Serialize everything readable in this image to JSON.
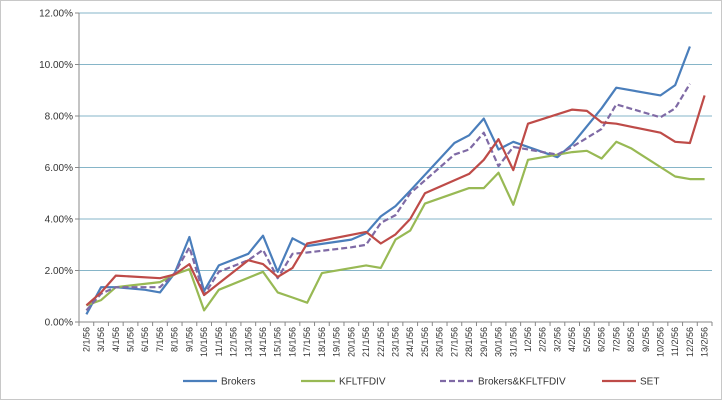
{
  "chart_data": {
    "type": "line",
    "title": "",
    "xlabel": "",
    "ylabel": "",
    "ylim": [
      0,
      12
    ],
    "y_ticks": [
      "0.00%",
      "2.00%",
      "4.00%",
      "6.00%",
      "8.00%",
      "10.00%",
      "12.00%"
    ],
    "grid": "horizontal",
    "legend_position": "bottom",
    "x": [
      "2/1/56",
      "3/1/56",
      "4/1/56",
      "5/1/56",
      "6/1/56",
      "7/1/56",
      "8/1/56",
      "9/1/56",
      "10/1/56",
      "11/1/56",
      "12/1/56",
      "13/1/56",
      "14/1/56",
      "15/1/56",
      "16/1/56",
      "17/1/56",
      "18/1/56",
      "19/1/56",
      "20/1/56",
      "21/1/56",
      "22/1/56",
      "23/1/56",
      "24/1/56",
      "25/1/56",
      "26/1/56",
      "27/1/56",
      "28/1/56",
      "29/1/56",
      "30/1/56",
      "31/1/56",
      "1/2/56",
      "2/2/56",
      "3/2/56",
      "4/2/56",
      "5/2/56",
      "6/2/56",
      "7/2/56",
      "8/2/56",
      "9/2/56",
      "10/2/56",
      "11/2/56",
      "12/2/56",
      "13/2/56"
    ],
    "series": [
      {
        "name": "Brokers",
        "color": "#4a7ebb",
        "dash": "solid",
        "points": [
          [
            0,
            0.3
          ],
          [
            1,
            1.35
          ],
          [
            2,
            1.35
          ],
          [
            4,
            1.25
          ],
          [
            5,
            1.15
          ],
          [
            6,
            1.9
          ],
          [
            7,
            3.3
          ],
          [
            8,
            1.2
          ],
          [
            9,
            2.2
          ],
          [
            11,
            2.65
          ],
          [
            12,
            3.35
          ],
          [
            13,
            1.95
          ],
          [
            14,
            3.25
          ],
          [
            15,
            2.95
          ],
          [
            18,
            3.2
          ],
          [
            19,
            3.45
          ],
          [
            20,
            4.1
          ],
          [
            21,
            4.5
          ],
          [
            22,
            5.1
          ],
          [
            25,
            6.95
          ],
          [
            26,
            7.25
          ],
          [
            27,
            7.9
          ],
          [
            28,
            6.7
          ],
          [
            29,
            7.0
          ],
          [
            32,
            6.4
          ],
          [
            33,
            6.9
          ],
          [
            35,
            8.3
          ],
          [
            36,
            9.1
          ],
          [
            39,
            8.8
          ],
          [
            40,
            9.2
          ],
          [
            41,
            10.7
          ]
        ]
      },
      {
        "name": "KFLTFDIV",
        "color": "#98b954",
        "dash": "solid",
        "points": [
          [
            0,
            0.65
          ],
          [
            1,
            0.85
          ],
          [
            2,
            1.35
          ],
          [
            5,
            1.55
          ],
          [
            6,
            1.85
          ],
          [
            7,
            2.05
          ],
          [
            8,
            0.45
          ],
          [
            9,
            1.25
          ],
          [
            12,
            1.95
          ],
          [
            13,
            1.15
          ],
          [
            14,
            0.95
          ],
          [
            15,
            0.75
          ],
          [
            16,
            1.9
          ],
          [
            19,
            2.2
          ],
          [
            20,
            2.1
          ],
          [
            21,
            3.2
          ],
          [
            22,
            3.55
          ],
          [
            23,
            4.6
          ],
          [
            26,
            5.2
          ],
          [
            27,
            5.2
          ],
          [
            28,
            5.8
          ],
          [
            29,
            4.55
          ],
          [
            30,
            6.3
          ],
          [
            33,
            6.6
          ],
          [
            34,
            6.65
          ],
          [
            35,
            6.35
          ],
          [
            36,
            7.0
          ],
          [
            37,
            6.75
          ],
          [
            40,
            5.65
          ],
          [
            41,
            5.55
          ],
          [
            42,
            5.55
          ]
        ]
      },
      {
        "name": "Brokers&KFLTFDIV",
        "color": "#7f6aa5",
        "dash": "6,3",
        "points": [
          [
            0,
            0.45
          ],
          [
            1,
            1.1
          ],
          [
            2,
            1.35
          ],
          [
            5,
            1.35
          ],
          [
            6,
            1.9
          ],
          [
            7,
            2.9
          ],
          [
            8,
            1.05
          ],
          [
            9,
            1.95
          ],
          [
            11,
            2.4
          ],
          [
            12,
            2.8
          ],
          [
            13,
            1.7
          ],
          [
            14,
            2.65
          ],
          [
            15,
            2.7
          ],
          [
            18,
            2.9
          ],
          [
            19,
            3.0
          ],
          [
            20,
            3.85
          ],
          [
            21,
            4.15
          ],
          [
            22,
            5.0
          ],
          [
            25,
            6.5
          ],
          [
            26,
            6.7
          ],
          [
            27,
            7.35
          ],
          [
            28,
            6.05
          ],
          [
            29,
            6.8
          ],
          [
            32,
            6.5
          ],
          [
            33,
            6.8
          ],
          [
            35,
            7.5
          ],
          [
            36,
            8.45
          ],
          [
            39,
            7.95
          ],
          [
            40,
            8.3
          ],
          [
            41,
            9.25
          ]
        ]
      },
      {
        "name": "SET",
        "color": "#be4b48",
        "dash": "solid",
        "points": [
          [
            0,
            0.65
          ],
          [
            1,
            1.15
          ],
          [
            2,
            1.8
          ],
          [
            5,
            1.7
          ],
          [
            6,
            1.85
          ],
          [
            7,
            2.25
          ],
          [
            8,
            1.05
          ],
          [
            9,
            1.5
          ],
          [
            11,
            2.4
          ],
          [
            12,
            2.25
          ],
          [
            13,
            1.75
          ],
          [
            14,
            2.1
          ],
          [
            15,
            3.05
          ],
          [
            19,
            3.5
          ],
          [
            20,
            3.05
          ],
          [
            21,
            3.4
          ],
          [
            22,
            4.0
          ],
          [
            23,
            5.0
          ],
          [
            26,
            5.75
          ],
          [
            27,
            6.3
          ],
          [
            28,
            7.1
          ],
          [
            29,
            5.9
          ],
          [
            30,
            7.7
          ],
          [
            33,
            8.25
          ],
          [
            34,
            8.2
          ],
          [
            35,
            7.75
          ],
          [
            36,
            7.7
          ],
          [
            39,
            7.35
          ],
          [
            40,
            7.0
          ],
          [
            41,
            6.95
          ],
          [
            42,
            8.8
          ]
        ]
      }
    ]
  }
}
